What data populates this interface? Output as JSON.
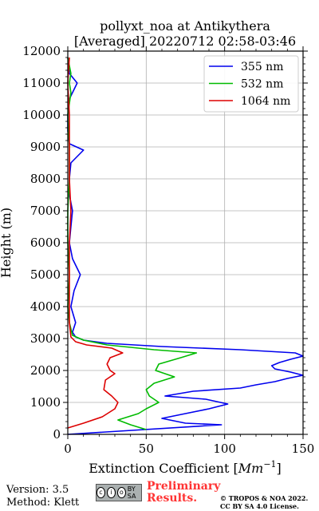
{
  "chart_data": {
    "type": "line",
    "title": "pollyxt_noa at Antikythera",
    "subtitle": "[Averaged] 20220712 02:58-03:46",
    "xlabel": "Extinction Coefficient [",
    "xlabel_unit": "Mm",
    "xlabel_exp": "−1",
    "xlabel_close": "]",
    "ylabel": "Height (m)",
    "xlim": [
      0,
      150
    ],
    "ylim": [
      0,
      12000
    ],
    "x_ticks": [
      0,
      50,
      100,
      150
    ],
    "y_ticks": [
      0,
      1000,
      2000,
      3000,
      4000,
      5000,
      6000,
      7000,
      8000,
      9000,
      10000,
      11000,
      12000
    ],
    "grid": true,
    "legend_position": "top-right",
    "series": [
      {
        "name": "355 nm",
        "color": "#0000ee",
        "points": [
          [
            0,
            0
          ],
          [
            98,
            300
          ],
          [
            75,
            350
          ],
          [
            60,
            500
          ],
          [
            75,
            650
          ],
          [
            90,
            800
          ],
          [
            102,
            950
          ],
          [
            88,
            1100
          ],
          [
            62,
            1200
          ],
          [
            80,
            1350
          ],
          [
            110,
            1450
          ],
          [
            120,
            1550
          ],
          [
            132,
            1650
          ],
          [
            140,
            1750
          ],
          [
            150,
            1850
          ],
          [
            142,
            1950
          ],
          [
            132,
            2050
          ],
          [
            130,
            2150
          ],
          [
            135,
            2250
          ],
          [
            142,
            2350
          ],
          [
            150,
            2450
          ],
          [
            145,
            2550
          ],
          [
            110,
            2650
          ],
          [
            60,
            2750
          ],
          [
            25,
            2850
          ],
          [
            10,
            2950
          ],
          [
            5,
            3050
          ],
          [
            3,
            3200
          ],
          [
            5,
            3500
          ],
          [
            2,
            4000
          ],
          [
            4,
            4500
          ],
          [
            8,
            5000
          ],
          [
            3,
            5500
          ],
          [
            1,
            6000
          ],
          [
            2,
            6500
          ],
          [
            3,
            7000
          ],
          [
            1,
            7500
          ],
          [
            1,
            8000
          ],
          [
            2,
            8500
          ],
          [
            10,
            8900
          ],
          [
            1,
            9100
          ],
          [
            0,
            9500
          ],
          [
            0,
            10000
          ],
          [
            1,
            10500
          ],
          [
            6,
            11000
          ],
          [
            1,
            11300
          ],
          [
            0,
            11800
          ]
        ]
      },
      {
        "name": "532 nm",
        "color": "#00bb00",
        "points": [
          [
            50,
            150
          ],
          [
            40,
            300
          ],
          [
            32,
            450
          ],
          [
            45,
            650
          ],
          [
            50,
            800
          ],
          [
            58,
            1000
          ],
          [
            52,
            1200
          ],
          [
            50,
            1400
          ],
          [
            55,
            1600
          ],
          [
            68,
            1800
          ],
          [
            56,
            2000
          ],
          [
            58,
            2200
          ],
          [
            72,
            2400
          ],
          [
            82,
            2550
          ],
          [
            55,
            2650
          ],
          [
            25,
            2800
          ],
          [
            10,
            2950
          ],
          [
            3,
            3100
          ],
          [
            1,
            3500
          ],
          [
            0,
            4000
          ],
          [
            1,
            5000
          ],
          [
            0,
            6000
          ],
          [
            0,
            7000
          ],
          [
            1,
            8000
          ],
          [
            1,
            9000
          ],
          [
            0,
            10000
          ],
          [
            2,
            10700
          ],
          [
            1,
            11000
          ],
          [
            2,
            11300
          ],
          [
            0,
            11800
          ]
        ]
      },
      {
        "name": "1064 nm",
        "color": "#dd0000",
        "points": [
          [
            0,
            200
          ],
          [
            10,
            350
          ],
          [
            22,
            550
          ],
          [
            30,
            800
          ],
          [
            32,
            1000
          ],
          [
            28,
            1200
          ],
          [
            23,
            1400
          ],
          [
            24,
            1700
          ],
          [
            30,
            1900
          ],
          [
            27,
            2000
          ],
          [
            25,
            2200
          ],
          [
            27,
            2400
          ],
          [
            35,
            2550
          ],
          [
            28,
            2700
          ],
          [
            12,
            2800
          ],
          [
            5,
            2900
          ],
          [
            2,
            3050
          ],
          [
            1,
            3500
          ],
          [
            1,
            4000
          ],
          [
            1,
            5000
          ],
          [
            1,
            6000
          ],
          [
            2,
            7000
          ],
          [
            1,
            8000
          ],
          [
            1,
            9000
          ],
          [
            1,
            10000
          ],
          [
            0,
            11000
          ],
          [
            1,
            11800
          ]
        ]
      }
    ]
  },
  "footer": {
    "version": "Version: 3.5",
    "method": "Method: Klett",
    "license_badge": "BY SA",
    "preliminary_line1": "Preliminary",
    "preliminary_line2": "Results.",
    "copyright_line1": "© TROPOS & NOA 2022.",
    "copyright_line2": "CC BY SA 4.0 License."
  }
}
